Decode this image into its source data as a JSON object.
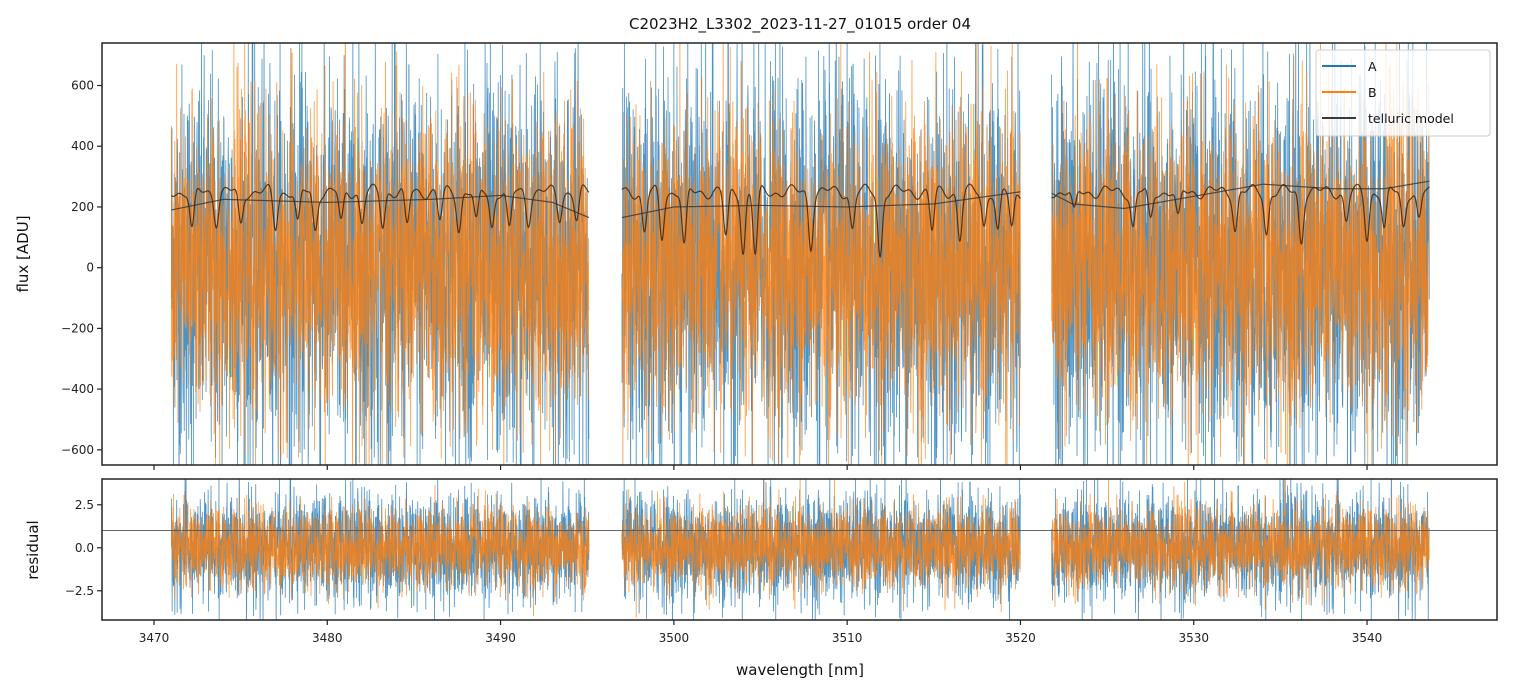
{
  "chart_data": [
    {
      "type": "line",
      "panel": "top",
      "title": "C2023H2_L3302_2023-11-27_01015  order 04",
      "xlabel": "",
      "ylabel": "flux [ADU]",
      "xlim": [
        3467,
        3547.5
      ],
      "ylim": [
        -650,
        740
      ],
      "x_ticks": [
        3470,
        3480,
        3490,
        3500,
        3510,
        3520,
        3530,
        3540
      ],
      "y_ticks": [
        -600,
        -400,
        -200,
        0,
        200,
        400,
        600
      ],
      "y_tick_labels": [
        "−600",
        "−400",
        "−200",
        "0",
        "200",
        "400",
        "600"
      ],
      "grid": false,
      "legend_position": "top-right",
      "segments": [
        {
          "x_start": 3471.0,
          "x_end": 3495.1
        },
        {
          "x_start": 3497.0,
          "x_end": 3520.0
        },
        {
          "x_start": 3521.8,
          "x_end": 3543.6
        }
      ],
      "series": [
        {
          "name": "A",
          "color": "#1f77b4",
          "description_stats": {
            "center": 0,
            "spread": 330
          }
        },
        {
          "name": "B",
          "color": "#ff7f0e",
          "description_stats": {
            "center": 0,
            "spread": 260
          }
        },
        {
          "name": "telluric model",
          "color": "#3a3a3a",
          "continuum_points": [
            [
              3471.0,
              190
            ],
            [
              3474,
              225
            ],
            [
              3480,
              215
            ],
            [
              3486,
              225
            ],
            [
              3490,
              238
            ],
            [
              3493,
              215
            ],
            [
              3495.1,
              165
            ],
            [
              3497.0,
              165
            ],
            [
              3500,
              200
            ],
            [
              3505,
              205
            ],
            [
              3510,
              200
            ],
            [
              3515,
              210
            ],
            [
              3520,
              250
            ],
            [
              3521.8,
              245
            ],
            [
              3523,
              210
            ],
            [
              3526,
              195
            ],
            [
              3530,
              235
            ],
            [
              3534,
              275
            ],
            [
              3538,
              260
            ],
            [
              3541,
              260
            ],
            [
              3543.6,
              285
            ]
          ],
          "model_level": 250,
          "absorption_lines": [
            [
              3472.2,
              140
            ],
            [
              3473.6,
              175
            ],
            [
              3475.0,
              160
            ],
            [
              3477.0,
              150
            ],
            [
              3478.3,
              160
            ],
            [
              3479.3,
              145
            ],
            [
              3480.8,
              165
            ],
            [
              3482.0,
              170
            ],
            [
              3483.2,
              160
            ],
            [
              3484.6,
              155
            ],
            [
              3486.5,
              175
            ],
            [
              3487.6,
              150
            ],
            [
              3488.6,
              165
            ],
            [
              3489.5,
              155
            ],
            [
              3490.5,
              140
            ],
            [
              3491.6,
              175
            ],
            [
              3493.4,
              185
            ],
            [
              3494.4,
              175
            ],
            [
              3498.3,
              135
            ],
            [
              3499.3,
              115
            ],
            [
              3500.6,
              85
            ],
            [
              3503.0,
              120
            ],
            [
              3504.0,
              75
            ],
            [
              3504.7,
              60
            ],
            [
              3507.9,
              95
            ],
            [
              3510.3,
              150
            ],
            [
              3511.9,
              60
            ],
            [
              3514.9,
              140
            ],
            [
              3516.5,
              115
            ],
            [
              3517.9,
              160
            ],
            [
              3518.7,
              135
            ],
            [
              3519.5,
              150
            ],
            [
              3523.1,
              195
            ],
            [
              3526.5,
              155
            ],
            [
              3527.5,
              170
            ],
            [
              3529.1,
              175
            ],
            [
              3532.4,
              150
            ],
            [
              3534.2,
              135
            ],
            [
              3536.2,
              110
            ],
            [
              3538.8,
              175
            ],
            [
              3540.0,
              120
            ],
            [
              3541.0,
              145
            ],
            [
              3542.1,
              155
            ],
            [
              3543.0,
              175
            ]
          ]
        }
      ]
    },
    {
      "type": "line",
      "panel": "bottom",
      "title": "",
      "xlabel": "wavelength [nm]",
      "ylabel": "residual",
      "xlim": [
        3467,
        3547.5
      ],
      "ylim": [
        -4.2,
        4.0
      ],
      "x_ticks": [
        3470,
        3480,
        3490,
        3500,
        3510,
        3520,
        3530,
        3540
      ],
      "x_tick_labels": [
        "3470",
        "3480",
        "3490",
        "3500",
        "3510",
        "3520",
        "3530",
        "3540"
      ],
      "y_ticks": [
        -2.5,
        0.0,
        2.5
      ],
      "y_tick_labels": [
        "−2.5",
        "0.0",
        "2.5"
      ],
      "grid": false,
      "reference_line": 1.0,
      "series": [
        {
          "name": "A",
          "color": "#1f77b4",
          "description_stats": {
            "center": 0,
            "spread": 1.6
          }
        },
        {
          "name": "B",
          "color": "#ff7f0e",
          "description_stats": {
            "center": 0,
            "spread": 1.2
          }
        }
      ]
    }
  ]
}
